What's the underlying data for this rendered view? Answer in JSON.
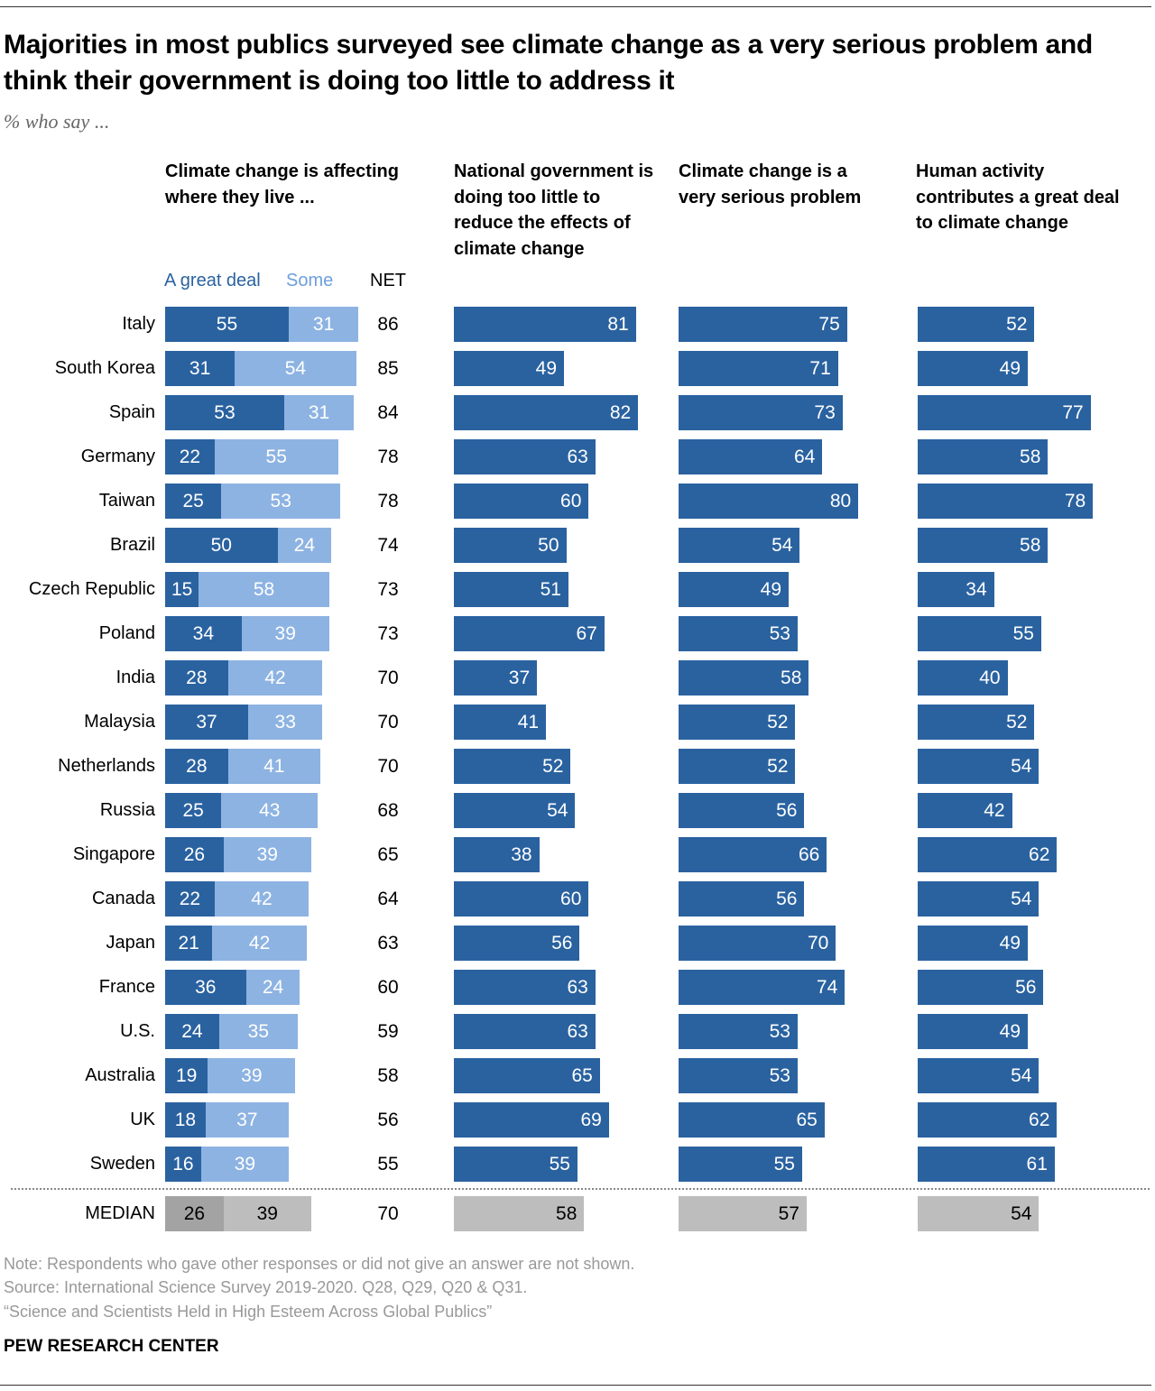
{
  "title": "Majorities in most publics surveyed see climate change as a very serious problem and think their government is doing too little to address it",
  "subtitle": "% who say ...",
  "colors": {
    "great_deal": "#2a62a0",
    "some": "#8db3e2",
    "median_dark": "#a3a3a3",
    "median_light": "#bdbdbd"
  },
  "chart_data": {
    "type": "bar",
    "orientation": "horizontal",
    "panels": [
      {
        "title": "Climate change is affecting where they live ...",
        "stacked": true,
        "series_names": [
          "A great deal",
          "Some"
        ],
        "net_label": "NET"
      },
      {
        "title": "National government is doing too little to reduce the effects of climate change"
      },
      {
        "title": "Climate change is a very serious problem"
      },
      {
        "title": "Human activity contributes a great deal to climate change"
      }
    ],
    "categories": [
      "Italy",
      "South Korea",
      "Spain",
      "Germany",
      "Taiwan",
      "Brazil",
      "Czech Republic",
      "Poland",
      "India",
      "Malaysia",
      "Netherlands",
      "Russia",
      "Singapore",
      "Canada",
      "Japan",
      "France",
      "U.S.",
      "Australia",
      "UK",
      "Sweden"
    ],
    "great_deal": [
      55,
      31,
      53,
      22,
      25,
      50,
      15,
      34,
      28,
      37,
      28,
      25,
      26,
      22,
      21,
      36,
      24,
      19,
      18,
      16
    ],
    "some": [
      31,
      54,
      31,
      55,
      53,
      24,
      58,
      39,
      42,
      33,
      41,
      43,
      39,
      42,
      42,
      24,
      35,
      39,
      37,
      39
    ],
    "net": [
      86,
      85,
      84,
      78,
      78,
      74,
      73,
      73,
      70,
      70,
      70,
      68,
      65,
      64,
      63,
      60,
      59,
      58,
      56,
      55
    ],
    "gov_too_little": [
      81,
      49,
      82,
      63,
      60,
      50,
      51,
      67,
      37,
      41,
      52,
      54,
      38,
      60,
      56,
      63,
      63,
      65,
      69,
      55
    ],
    "very_serious": [
      75,
      71,
      73,
      64,
      80,
      54,
      49,
      53,
      58,
      52,
      52,
      56,
      66,
      56,
      70,
      74,
      53,
      53,
      65,
      55
    ],
    "human_activity": [
      52,
      49,
      77,
      58,
      78,
      58,
      34,
      55,
      40,
      52,
      54,
      42,
      62,
      54,
      49,
      56,
      49,
      54,
      62,
      61
    ],
    "median": {
      "label": "MEDIAN",
      "great_deal": 26,
      "some": 39,
      "net": 70,
      "gov_too_little": 58,
      "very_serious": 57,
      "human_activity": 54
    }
  },
  "footer": {
    "note": "Note: Respondents who gave other responses or did not give an answer are not shown.",
    "source": "Source: International Science Survey 2019-2020. Q28, Q29, Q20 & Q31.",
    "report": "“Science and Scientists Held in High Esteem Across Global Publics”",
    "brand": "PEW RESEARCH CENTER"
  }
}
